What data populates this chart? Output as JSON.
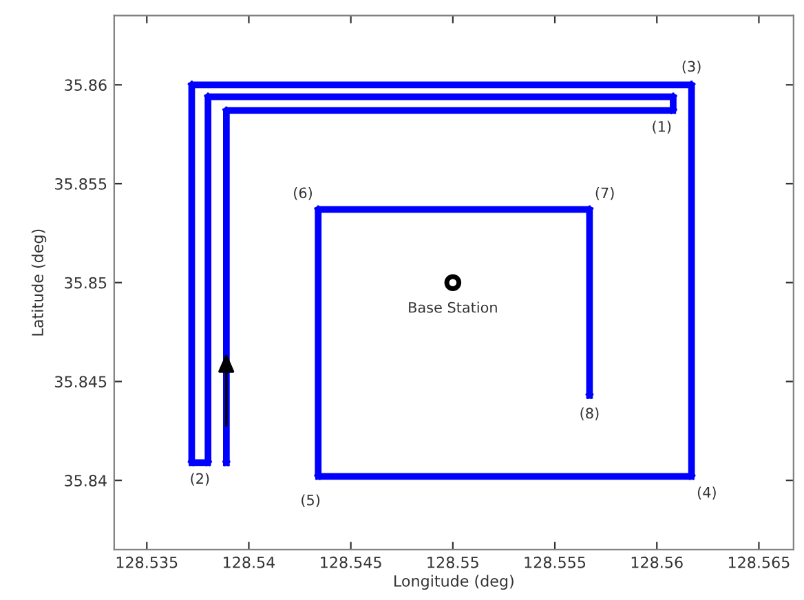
{
  "chart_data": {
    "type": "line",
    "xlabel": "Longitude (deg)",
    "ylabel": "Latitude (deg)",
    "xlim": [
      128.5334,
      128.5667
    ],
    "ylim": [
      35.8365,
      35.8635
    ],
    "xticks": [
      128.535,
      128.54,
      128.545,
      128.55,
      128.555,
      128.56,
      128.565
    ],
    "yticks": [
      35.84,
      35.845,
      35.85,
      35.855,
      35.86
    ],
    "grid": false,
    "legend": false,
    "series": [
      {
        "color": "#0000ff",
        "marker": "star",
        "x": [
          128.5389,
          128.5389,
          128.5608,
          128.5608,
          128.538,
          128.538,
          128.5372,
          128.5372,
          128.5617,
          128.5617,
          128.5434,
          128.5434,
          128.5567,
          128.5567
        ],
        "values": [
          35.8409,
          35.8587,
          35.8587,
          35.8594,
          35.8594,
          35.8409,
          35.8409,
          35.86,
          35.86,
          35.8402,
          35.8402,
          35.8537,
          35.8537,
          35.8443
        ]
      },
      {
        "type": "scatter",
        "name": "Base Station",
        "color": "#000000",
        "marker": "circle",
        "x": [
          128.55
        ],
        "values": [
          35.85
        ]
      }
    ],
    "annotations": [
      {
        "text": "(1)",
        "x": 128.5608,
        "y": 35.8587
      },
      {
        "text": "(2)",
        "x": 128.5376,
        "y": 35.8409
      },
      {
        "text": "(3)",
        "x": 128.5617,
        "y": 35.86
      },
      {
        "text": "(4)",
        "x": 128.5617,
        "y": 35.8402
      },
      {
        "text": "(5)",
        "x": 128.5434,
        "y": 35.8402
      },
      {
        "text": "(6)",
        "x": 128.5434,
        "y": 35.8537
      },
      {
        "text": "(7)",
        "x": 128.5567,
        "y": 35.8537
      },
      {
        "text": "(8)",
        "x": 128.5567,
        "y": 35.8443
      }
    ]
  }
}
